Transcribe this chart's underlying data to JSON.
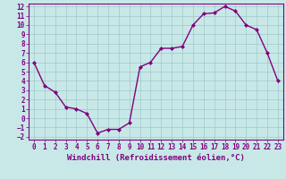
{
  "x": [
    0,
    1,
    2,
    3,
    4,
    5,
    6,
    7,
    8,
    9,
    10,
    11,
    12,
    13,
    14,
    15,
    16,
    17,
    18,
    19,
    20,
    21,
    22,
    23
  ],
  "y": [
    6.0,
    3.5,
    2.8,
    1.2,
    1.0,
    0.5,
    -1.6,
    -1.2,
    -1.2,
    -0.5,
    5.5,
    6.0,
    7.5,
    7.5,
    7.7,
    10.0,
    11.2,
    11.3,
    12.0,
    11.5,
    10.0,
    9.5,
    7.0,
    4.0
  ],
  "line_color": "#800080",
  "marker": "D",
  "marker_size": 2.0,
  "bg_color": "#c8e8e8",
  "grid_color": "#a0c8c8",
  "xlabel": "Windchill (Refroidissement éolien,°C)",
  "ylim": [
    -2,
    12
  ],
  "xlim": [
    -0.5,
    23.5
  ],
  "yticks": [
    -2,
    -1,
    0,
    1,
    2,
    3,
    4,
    5,
    6,
    7,
    8,
    9,
    10,
    11,
    12
  ],
  "xticks": [
    0,
    1,
    2,
    3,
    4,
    5,
    6,
    7,
    8,
    9,
    10,
    11,
    12,
    13,
    14,
    15,
    16,
    17,
    18,
    19,
    20,
    21,
    22,
    23
  ],
  "font_color": "#800080",
  "tick_font_size": 5.5,
  "label_font_size": 6.5,
  "line_width": 1.0
}
